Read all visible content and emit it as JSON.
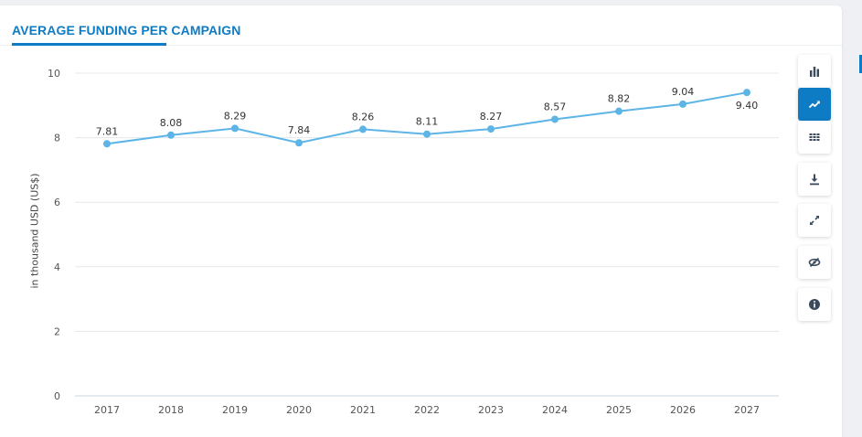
{
  "widget": {
    "title": "AVERAGE FUNDING PER CAMPAIGN",
    "accent_color": "#0e7cc4"
  },
  "toolbar": {
    "buttons": [
      {
        "icon": "bar-chart-icon",
        "active": false
      },
      {
        "icon": "line-chart-icon",
        "active": true
      },
      {
        "icon": "table-icon",
        "active": false
      },
      {
        "icon": "download-icon",
        "active": false
      },
      {
        "icon": "expand-icon",
        "active": false
      },
      {
        "icon": "hide-icon",
        "active": false
      },
      {
        "icon": "info-icon",
        "active": false
      }
    ]
  },
  "chart_data": {
    "type": "line",
    "categories": [
      "2017",
      "2018",
      "2019",
      "2020",
      "2021",
      "2022",
      "2023",
      "2024",
      "2025",
      "2026",
      "2027"
    ],
    "series": [
      {
        "values": [
          7.81,
          8.08,
          8.29,
          7.84,
          8.26,
          8.11,
          8.27,
          8.57,
          8.82,
          9.04,
          9.4
        ],
        "color": "#5db4e6"
      }
    ],
    "data_labels": [
      "7.81",
      "8.08",
      "8.29",
      "7.84",
      "8.26",
      "8.11",
      "8.27",
      "8.57",
      "8.82",
      "9.04",
      "9.40"
    ],
    "ylabel": "in thousand USD (US$)",
    "ylim": [
      0,
      10
    ],
    "yticks": [
      "0",
      "2",
      "4",
      "6",
      "8",
      "10"
    ],
    "grid": true
  }
}
